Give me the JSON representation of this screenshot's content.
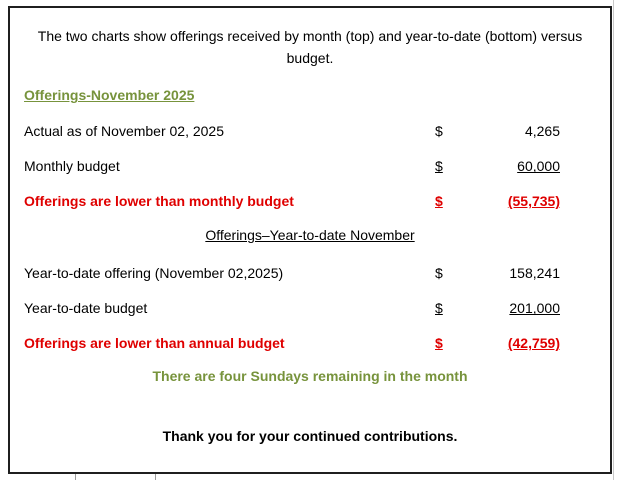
{
  "colors": {
    "green": "#77933C",
    "red": "#DF0000",
    "border": "#1f1f1f"
  },
  "intro": "The two charts show offerings received by month (top) and year-to-date (bottom) versus budget.",
  "monthly": {
    "heading": "Offerings-November 2025",
    "rows": [
      {
        "label": "Actual as of November 02, 2025",
        "currency": "$",
        "amount": "4,265"
      },
      {
        "label": "Monthly budget",
        "currency": "$",
        "amount": "60,000"
      },
      {
        "label": "Offerings are lower than monthly budget",
        "currency": "$",
        "amount": "(55,735)"
      }
    ]
  },
  "ytd": {
    "heading": "Offerings–Year-to-date November",
    "rows": [
      {
        "label": "Year-to-date offering (November 02,2025)",
        "currency": "$",
        "amount": "158,241"
      },
      {
        "label": "Year-to-date budget",
        "currency": "$",
        "amount": "201,000"
      },
      {
        "label": "Offerings are lower than annual budget",
        "currency": "$",
        "amount": "(42,759)"
      }
    ]
  },
  "note": "There are four Sundays remaining in the month",
  "closing": "Thank you for your continued contributions."
}
